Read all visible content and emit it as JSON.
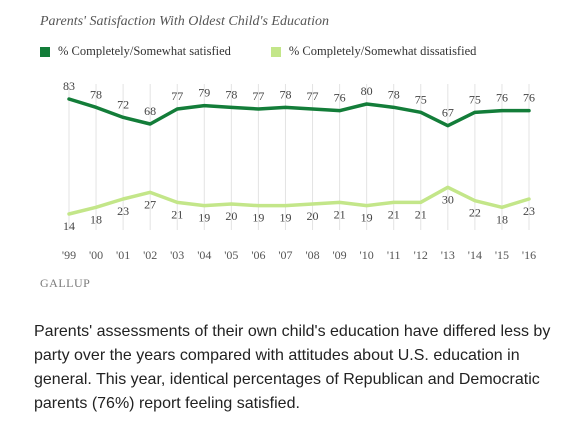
{
  "chart_data": {
    "type": "line",
    "title": "Parents' Satisfaction With Oldest Child's Education",
    "categories": [
      "'99",
      "'00",
      "'01",
      "'02",
      "'03",
      "'04",
      "'05",
      "'06",
      "'07",
      "'08",
      "'09",
      "'10",
      "'11",
      "'12",
      "'13",
      "'14",
      "'15",
      "'16"
    ],
    "series": [
      {
        "name": "% Completely/Somewhat satisfied",
        "color": "#137d39",
        "values": [
          83,
          78,
          72,
          68,
          77,
          79,
          78,
          77,
          78,
          77,
          76,
          80,
          78,
          75,
          67,
          75,
          76,
          76
        ]
      },
      {
        "name": "% Completely/Somewhat dissatisfied",
        "color": "#c3e689",
        "values": [
          14,
          18,
          23,
          27,
          21,
          19,
          20,
          19,
          19,
          20,
          21,
          19,
          21,
          21,
          30,
          22,
          18,
          23
        ]
      }
    ],
    "grid": "vertical",
    "legend": "top-left"
  },
  "logo": {
    "text": "GALLUP"
  },
  "caption": "Parents' assessments of their own child's education have differed less by party over the years compared with attitudes about U.S. education in general. This year, identical percentages of Republican and Democratic parents (76%) report feeling satisfied."
}
